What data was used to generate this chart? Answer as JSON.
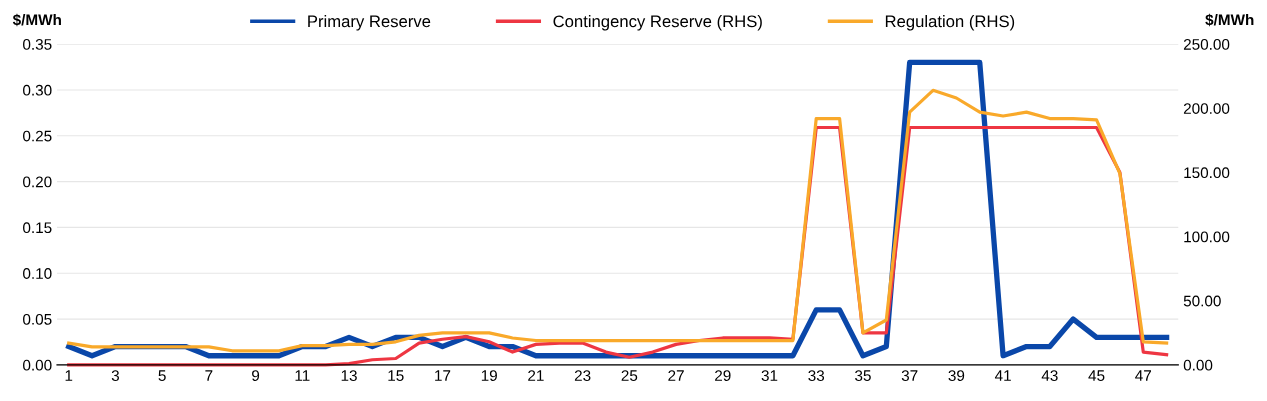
{
  "chart_data": {
    "type": "line",
    "ylabel": "$/MWh",
    "y2label": "$/MWh",
    "categories": [
      "1",
      null,
      "3",
      null,
      "5",
      null,
      "7",
      null,
      "9",
      null,
      "11",
      null,
      "13",
      null,
      "15",
      null,
      "17",
      null,
      "19",
      null,
      "21",
      null,
      "23",
      null,
      "25",
      null,
      "27",
      null,
      "29",
      null,
      "31",
      null,
      "33",
      null,
      "35",
      null,
      "37",
      null,
      "39",
      null,
      "41",
      null,
      "43",
      null,
      "45",
      null,
      "47",
      null
    ],
    "series": [
      {
        "name": "Primary Reserve",
        "color": "#0a47a9",
        "values": [
          0.02,
          0.01,
          0.02,
          0.02,
          0.02,
          0.02,
          0.01,
          0.01,
          0.01,
          0.01,
          0.02,
          0.02,
          0.03,
          0.02,
          0.03,
          0.03,
          0.02,
          0.03,
          0.02,
          0.02,
          0.01,
          0.01,
          0.01,
          0.01,
          0.01,
          0.01,
          0.01,
          0.01,
          0.01,
          0.01,
          0.01,
          0.01,
          0.06,
          0.06,
          0.01,
          0.02,
          0.33,
          0.33,
          0.33,
          0.33,
          0.01,
          0.02,
          0.02,
          0.05,
          0.03,
          0.03,
          0.03,
          0.03
        ]
      },
      {
        "name": "Contingency Reserve (RHS)",
        "color": "#ee3642",
        "axis": "y2",
        "values": [
          0,
          0,
          0,
          0,
          0,
          0,
          0,
          0,
          0,
          0,
          0,
          0,
          1,
          4,
          5,
          17,
          20,
          22,
          18,
          10,
          16,
          17,
          17,
          10,
          6,
          10,
          16,
          19,
          21,
          21,
          21,
          20,
          185,
          185,
          25,
          25,
          185,
          185,
          185,
          185,
          185,
          185,
          185,
          185,
          185,
          150,
          10,
          8
        ]
      },
      {
        "name": "Regulation (RHS)",
        "color": "#f9a92a",
        "axis": "y2",
        "values": [
          17,
          14,
          14,
          14,
          14,
          14,
          14,
          11,
          11,
          11,
          15,
          15,
          16,
          16,
          18,
          23,
          25,
          25,
          25,
          21,
          19,
          19,
          19,
          19,
          19,
          19,
          19,
          19,
          19,
          19,
          19,
          19,
          192,
          192,
          25,
          35,
          197,
          214,
          208,
          197,
          194,
          197,
          192,
          192,
          191,
          149,
          18,
          17
        ]
      }
    ],
    "ylim": [
      0,
      0.35
    ],
    "yticks": [
      {
        "value": 0,
        "label": "0.00"
      },
      {
        "value": 0.05,
        "label": "0.05"
      },
      {
        "value": 0.1,
        "label": "0.10"
      },
      {
        "value": 0.15,
        "label": "0.15"
      },
      {
        "value": 0.2,
        "label": "0.20"
      },
      {
        "value": 0.25,
        "label": "0.25"
      },
      {
        "value": 0.3,
        "label": "0.30"
      },
      {
        "value": 0.35,
        "label": "0.35"
      }
    ],
    "y2lim": [
      0,
      250
    ],
    "y2ticks": [
      {
        "value": 0,
        "label": "0.00"
      },
      {
        "value": 50,
        "label": "50.00"
      },
      {
        "value": 100,
        "label": "100.00"
      },
      {
        "value": 150,
        "label": "150.00"
      },
      {
        "value": 200,
        "label": "200.00"
      },
      {
        "value": 250,
        "label": "250.00"
      }
    ],
    "grid": "y",
    "legend": "top",
    "marker": "none",
    "line_style": "solid"
  }
}
